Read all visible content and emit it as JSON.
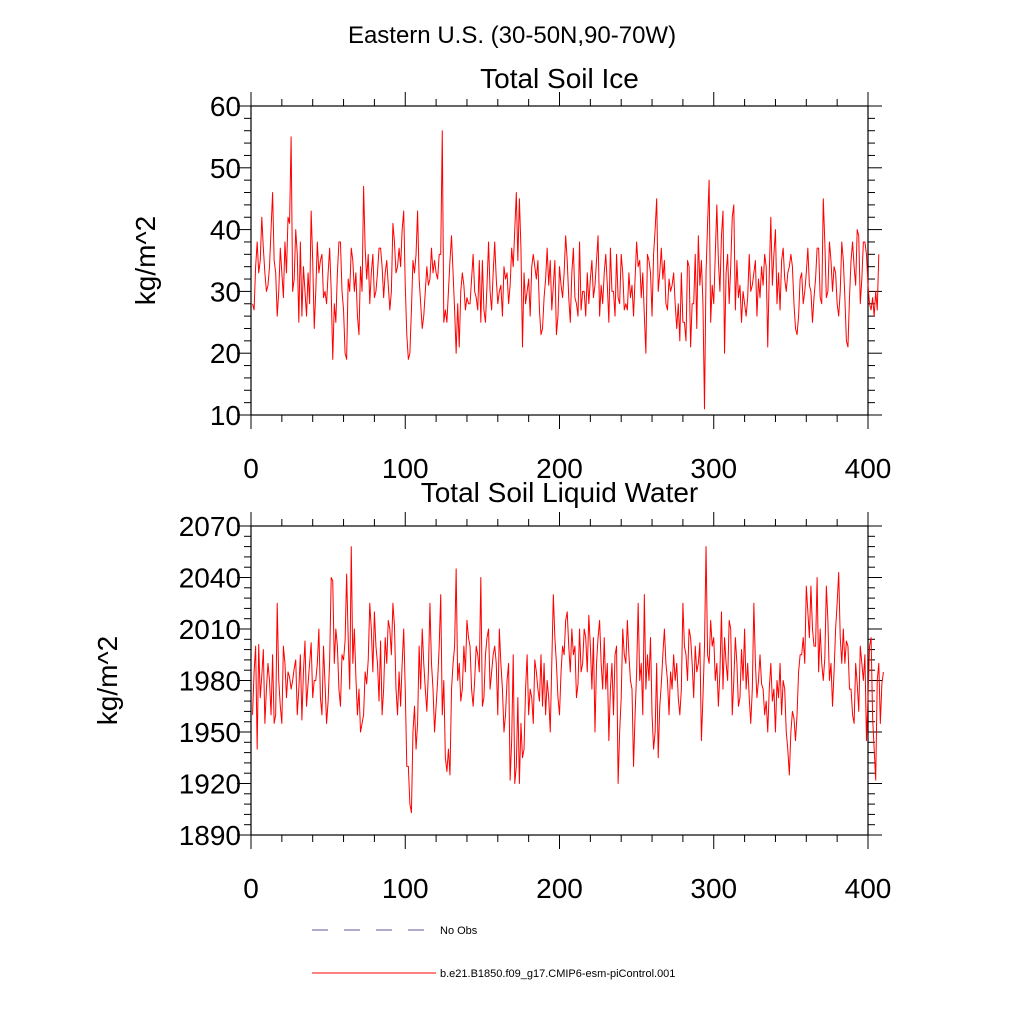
{
  "page_title": "Eastern U.S. (30-50N,90-70W)",
  "colors": {
    "model": "#ff0000",
    "obs": "#5a5aa0",
    "axis": "#000000"
  },
  "legend": {
    "obs_label": "No Obs",
    "model_label": "b.e21.B1850.f09_g17.CMIP6-esm-piControl.001"
  },
  "chart_data": [
    {
      "type": "line",
      "title": "Total Soil Ice",
      "xlabel": "",
      "ylabel": "kg/m^2",
      "xlim": [
        0,
        400
      ],
      "ylim": [
        10,
        60
      ],
      "xticks": [
        0,
        100,
        200,
        300,
        400
      ],
      "yticks": [
        10,
        20,
        30,
        40,
        50,
        60
      ],
      "xtick_labels": [
        "0",
        "100",
        "200",
        "300",
        "400"
      ],
      "ytick_labels": [
        "10",
        "20",
        "30",
        "40",
        "50",
        "60"
      ],
      "series": [
        {
          "name": "b.e21.B1850.f09_g17.CMIP6-esm-piControl.001",
          "x_start": 1,
          "values": [
            28,
            27,
            34,
            38,
            33,
            35,
            42,
            37,
            33,
            30,
            31,
            34,
            40,
            46,
            35,
            33,
            26,
            30,
            37,
            33,
            29,
            38,
            33,
            42,
            41,
            55,
            30,
            32,
            40,
            36,
            25,
            38,
            26,
            34,
            30,
            26,
            33,
            28,
            43,
            35,
            24,
            30,
            38,
            33,
            35,
            36,
            29,
            30,
            28,
            33,
            37,
            30,
            19,
            28,
            25,
            33,
            38,
            38,
            30,
            27,
            20,
            19,
            32,
            30,
            37,
            35,
            30,
            33,
            26,
            23,
            34,
            30,
            47,
            37,
            32,
            36,
            28,
            33,
            36,
            29,
            30,
            33,
            37,
            37,
            34,
            29,
            33,
            35,
            31,
            27,
            30,
            41,
            38,
            33,
            34,
            37,
            34,
            40,
            43,
            31,
            23,
            19,
            20,
            27,
            35,
            33,
            36,
            43,
            32,
            28,
            24,
            26,
            30,
            34,
            31,
            32,
            37,
            33,
            35,
            33,
            32,
            36,
            36,
            56,
            25,
            27,
            25,
            30,
            35,
            39,
            33,
            27,
            20,
            28,
            21,
            30,
            33,
            31,
            27,
            29,
            28,
            28,
            32,
            36,
            30,
            29,
            27,
            35,
            25,
            35,
            27,
            25,
            31,
            38,
            30,
            27,
            33,
            38,
            32,
            28,
            30,
            31,
            26,
            34,
            32,
            33,
            28,
            31,
            37,
            34,
            40,
            46,
            35,
            45,
            37,
            21,
            33,
            28,
            30,
            32,
            26,
            34,
            36,
            34,
            32,
            35,
            27,
            23,
            24,
            29,
            32,
            37,
            31,
            35,
            27,
            31,
            35,
            23,
            26,
            34,
            31,
            29,
            33,
            39,
            35,
            29,
            25,
            33,
            37,
            29,
            28,
            26,
            38,
            27,
            30,
            30,
            26,
            33,
            28,
            32,
            35,
            29,
            31,
            35,
            39,
            26,
            31,
            28,
            33,
            36,
            31,
            25,
            37,
            30,
            30,
            26,
            36,
            29,
            28,
            36,
            33,
            27,
            28,
            27,
            33,
            29,
            31,
            26,
            32,
            38,
            34,
            35,
            29,
            33,
            26,
            20,
            36,
            35,
            33,
            26,
            36,
            40,
            45,
            30,
            33,
            37,
            32,
            35,
            28,
            27,
            32,
            30,
            31,
            33,
            28,
            24,
            28,
            22,
            33,
            25,
            25,
            22,
            35,
            34,
            21,
            28,
            28,
            36,
            24,
            39,
            31,
            35,
            28,
            11,
            33,
            41,
            48,
            25,
            31,
            28,
            36,
            44,
            35,
            30,
            39,
            43,
            20,
            33,
            36,
            28,
            34,
            42,
            44,
            27,
            35,
            29,
            31,
            25,
            30,
            28,
            26,
            29,
            36,
            30,
            31,
            33,
            35,
            26,
            32,
            29,
            34,
            31,
            36,
            34,
            21,
            33,
            42,
            31,
            36,
            40,
            28,
            33,
            27,
            35,
            37,
            32,
            30,
            33,
            34,
            36,
            34,
            28,
            24,
            23,
            26,
            32,
            33,
            28,
            30,
            33,
            37,
            31,
            30,
            25,
            29,
            32,
            37,
            37,
            29,
            28,
            45,
            38,
            29,
            30,
            38,
            35,
            30,
            34,
            33,
            28,
            26,
            30,
            38,
            35,
            29,
            22,
            21,
            29,
            35,
            38,
            34,
            31,
            40,
            39,
            28,
            32,
            38,
            38,
            36,
            31,
            28,
            27,
            29,
            26,
            30,
            27,
            36
          ]
        }
      ]
    },
    {
      "type": "line",
      "title": "Total Soil Liquid Water",
      "xlabel": "",
      "ylabel": "kg/m^2",
      "xlim": [
        0,
        400
      ],
      "ylim": [
        1890,
        2070
      ],
      "xticks": [
        0,
        100,
        200,
        300,
        400
      ],
      "yticks": [
        1890,
        1920,
        1950,
        1980,
        2010,
        2040,
        2070
      ],
      "xtick_labels": [
        "0",
        "100",
        "200",
        "300",
        "400"
      ],
      "ytick_labels": [
        "1890",
        "1920",
        "1950",
        "1980",
        "2010",
        "2040",
        "2070"
      ],
      "series": [
        {
          "name": "b.e21.B1850.f09_g17.CMIP6-esm-piControl.001",
          "x_start": 1,
          "values": [
            1960,
            1985,
            2000,
            1940,
            2001,
            1970,
            1983,
            1998,
            1955,
            1975,
            1990,
            1980,
            1960,
            1995,
            1955,
            1960,
            2025,
            1980,
            1965,
            1955,
            2000,
            1990,
            1970,
            1985,
            1982,
            1975,
            1980,
            1987,
            1992,
            1960,
            1975,
            1995,
            1957,
            1985,
            2003,
            1965,
            1978,
            1990,
            2002,
            1970,
            1980,
            1980,
            1990,
            2010,
            1970,
            1960,
            2000,
            1978,
            1955,
            1968,
            1992,
            2040,
            2038,
            1990,
            2010,
            2000,
            1975,
            1965,
            1995,
            1992,
            2003,
            2042,
            2005,
            1975,
            2058,
            1990,
            2010,
            1982,
            1960,
            1975,
            1950,
            1955,
            1960,
            1985,
            1978,
            1992,
            2025,
            2010,
            1985,
            2020,
            2000,
            1990,
            1968,
            2003,
            1960,
            1975,
            2005,
            1990,
            2015,
            2010,
            1995,
            2025,
            2012,
            1975,
            1960,
            1985,
            1965,
            1990,
            2010,
            1975,
            1930,
            1930,
            1908,
            1903,
            1950,
            1965,
            1940,
            1955,
            2000,
            1975,
            2010,
            1990,
            1975,
            1962,
            1985,
            2025,
            1990,
            1975,
            1950,
            1965,
            1980,
            2000,
            2030,
            1960,
            1980,
            1935,
            1927,
            1940,
            1925,
            1975,
            1990,
            2000,
            2045,
            1980,
            1990,
            1968,
            1975,
            2000,
            1985,
            2015,
            2005,
            2000,
            1975,
            1965,
            1980,
            2000,
            1995,
            1985,
            2040,
            1965,
            1970,
            1995,
            2005,
            2010,
            1975,
            1985,
            1995,
            2000,
            1990,
            1960,
            2010,
            1990,
            1975,
            1950,
            1960,
            1980,
            1990,
            1922,
            1945,
            1995,
            1920,
            1930,
            1970,
            1920,
            1955,
            1935,
            1940,
            1975,
            1995,
            1960,
            1975,
            1970,
            1955,
            1992,
            1985,
            1975,
            1968,
            1995,
            1965,
            1990,
            1960,
            1980,
            1970,
            1950,
            1990,
            2030,
            2005,
            1990,
            1970,
            1960,
            1985,
            2000,
            1995,
            2015,
            2020,
            2000,
            1985,
            2010,
            1995,
            2000,
            1970,
            1978,
            2010,
            1985,
            1990,
            2010,
            2005,
            1985,
            2018,
            2000,
            1975,
            2005,
            1950,
            1990,
            2005,
            2015,
            1990,
            1975,
            2005,
            1975,
            1990,
            1945,
            1975,
            1990,
            1960,
            1995,
            2000,
            1920,
            1950,
            1970,
            2010,
            1995,
            1990,
            2015,
            1995,
            1980,
            1975,
            1930,
            1960,
            1985,
            2025,
            1980,
            1990,
            1960,
            2030,
            1975,
            1995,
            1980,
            2005,
            1960,
            1940,
            1950,
            1990,
            1935,
            1965,
            1978,
            1995,
            2010,
            1990,
            1980,
            1960,
            1985,
            1975,
            1995,
            1980,
            1990,
            1970,
            1960,
            1975,
            2025,
            2000,
            1995,
            1980,
            2010,
            2005,
            1990,
            1970,
            2000,
            1985,
            1990,
            2002,
            1945,
            1970,
            2000,
            2058,
            1995,
            1990,
            2015,
            2000,
            2005,
            1980,
            1990,
            1965,
            1985,
            2020,
            1975,
            2005,
            1990,
            1980,
            2015,
            2010,
            1960,
            1980,
            2005,
            1990,
            1965,
            1970,
            1998,
            1980,
            2010,
            1975,
            1990,
            1970,
            1955,
            1975,
            2025,
            1990,
            1970,
            1980,
            1995,
            1978,
            1975,
            1960,
            1968,
            1950,
            1975,
            1990,
            1968,
            1975,
            1950,
            1980,
            1970,
            1990,
            1960,
            1980,
            1975,
            1950,
            1940,
            1925,
            1950,
            1962,
            1958,
            1945,
            1960,
            1985,
            1995,
            1995,
            2005,
            1990,
            2035,
            2020,
            2005,
            2035,
            2010,
            2000,
            2000,
            2040,
            1985,
            2010,
            1990,
            1980,
            1993,
            2035,
            2015,
            1980,
            1990,
            1965,
            1985,
            2010,
            2025,
            2043,
            2005,
            1990,
            2010,
            1990,
            2003,
            2000,
            1975,
            1975,
            1960,
            1955,
            1990,
            1978,
            1962,
            2000,
            1990,
            1980,
            1995,
            1945,
            1970,
            2000,
            2005,
            1958,
            1940,
            1922,
            1980,
            1990,
            1955,
            1978,
            1985
          ]
        }
      ]
    }
  ]
}
